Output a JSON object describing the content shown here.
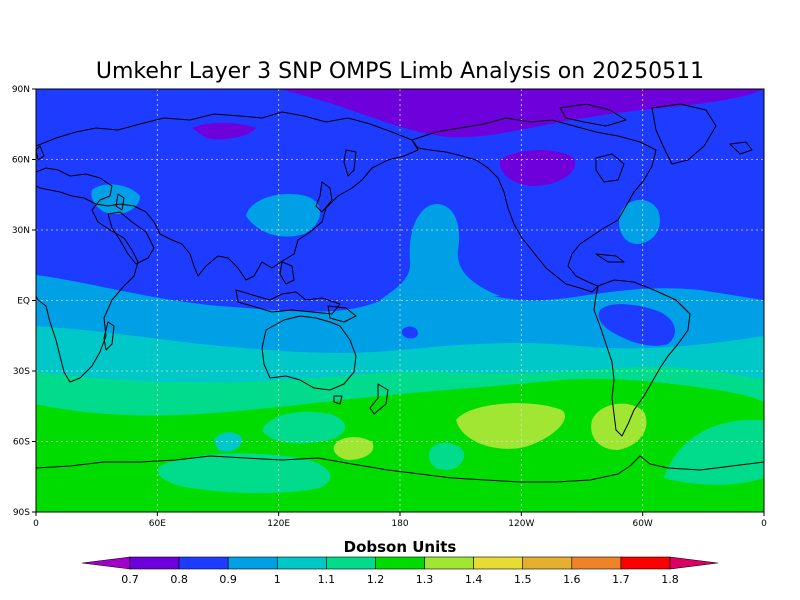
{
  "title": "Umkehr Layer 3 SNP OMPS Limb Analysis on 20250511",
  "map": {
    "projection": "cylindrical equidistant",
    "lon_range": [
      0,
      360
    ],
    "lat_range": [
      -90,
      90
    ],
    "lat_ticks": [
      {
        "value": 90,
        "label": "90N"
      },
      {
        "value": 60,
        "label": "60N"
      },
      {
        "value": 30,
        "label": "30N"
      },
      {
        "value": 0,
        "label": "EQ"
      },
      {
        "value": -30,
        "label": "30S"
      },
      {
        "value": -60,
        "label": "60S"
      },
      {
        "value": -90,
        "label": "90S"
      }
    ],
    "lon_ticks": [
      {
        "value": 0,
        "label": "0"
      },
      {
        "value": 60,
        "label": "60E"
      },
      {
        "value": 120,
        "label": "120E"
      },
      {
        "value": 180,
        "label": "180"
      },
      {
        "value": 240,
        "label": "120W"
      },
      {
        "value": 300,
        "label": "60W"
      },
      {
        "value": 360,
        "label": "0"
      }
    ],
    "grid": true
  },
  "colorbar": {
    "title": "Dobson Units",
    "levels": [
      "0.7",
      "0.8",
      "0.9",
      "1",
      "1.1",
      "1.2",
      "1.3",
      "1.4",
      "1.5",
      "1.6",
      "1.7",
      "1.8"
    ],
    "colors": [
      "#a000c8",
      "#6e00dc",
      "#1e3cff",
      "#00a0e6",
      "#00c8c8",
      "#00dc8c",
      "#00dc00",
      "#a0e632",
      "#e6dc32",
      "#e6af2d",
      "#f08228",
      "#fa0000",
      "#dc0064"
    ]
  },
  "chart_data": {
    "type": "heatmap",
    "title": "Umkehr Layer 3 SNP OMPS Limb Analysis on 20250511",
    "units": "Dobson Units",
    "x_range_deg_lon": [
      0,
      360
    ],
    "y_range_deg_lat": [
      -90,
      90
    ],
    "value_range": [
      0.7,
      1.8
    ],
    "features": [
      {
        "region": "north polar cap (75N-90N, 150E-330E)",
        "value_range": "0.7-0.8"
      },
      {
        "region": "northern hemisphere mid-latitudes",
        "value_range": "0.8-0.9"
      },
      {
        "region": "tropics / equatorial band",
        "value_range": "0.9-1.0"
      },
      {
        "region": "southern subtropics (15S-35S)",
        "value_range": "1.0-1.1"
      },
      {
        "region": "southern mid-latitudes (35S-50S)",
        "value_range": "1.1-1.2"
      },
      {
        "region": "southern high latitudes (50S-90S)",
        "value_range": "1.2-1.3"
      },
      {
        "region": "local maxima near 150W 45S and 65W 50S",
        "value_range": "1.3-1.4"
      }
    ]
  }
}
